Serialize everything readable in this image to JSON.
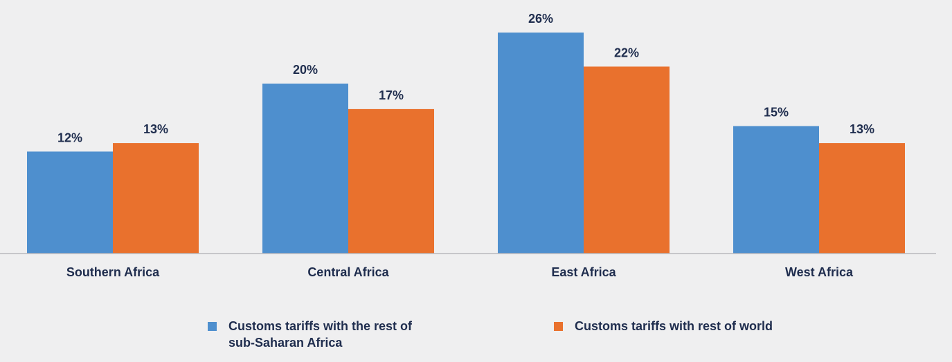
{
  "chart_data": {
    "type": "bar",
    "categories": [
      "Southern Africa",
      "Central Africa",
      "East Africa",
      "West Africa"
    ],
    "series": [
      {
        "name": "Customs tariffs with the rest of sub-Saharan Africa",
        "values": [
          12,
          20,
          26,
          15
        ],
        "color": "#4e8fce"
      },
      {
        "name": "Customs tariffs with rest of world",
        "values": [
          13,
          17,
          22,
          13
        ],
        "color": "#e9712d"
      }
    ],
    "data_labels": [
      [
        "12%",
        "20%",
        "26%",
        "15%"
      ],
      [
        "13%",
        "17%",
        "22%",
        "13%"
      ]
    ],
    "title": "",
    "xlabel": "",
    "ylabel": "",
    "ylim": [
      0,
      30
    ],
    "grid": false,
    "y_axis_visible": false,
    "legend_position": "bottom",
    "text_color": "#1f2d4e",
    "axis_color": "#b9b9bd"
  },
  "legend": {
    "items": [
      {
        "label": "Customs tariffs with the rest of sub-Saharan Africa"
      },
      {
        "label": "Customs tariffs with rest of world"
      }
    ]
  }
}
